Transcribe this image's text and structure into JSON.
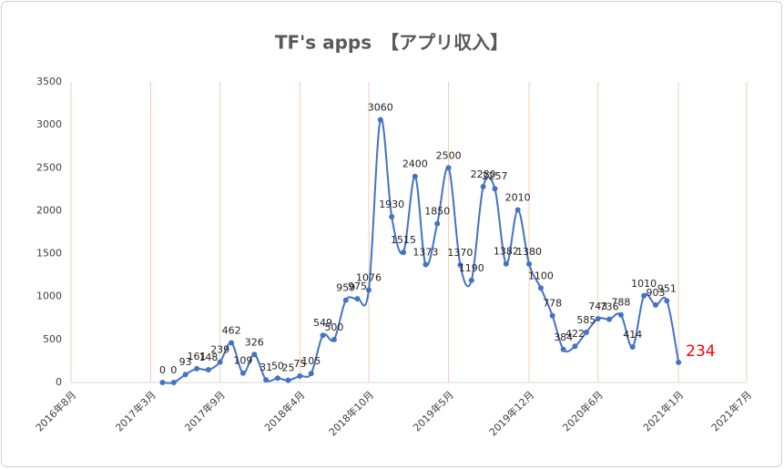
{
  "chart_data": {
    "type": "line",
    "title": "TF's apps　【アプリ収入】",
    "x": [
      "2017-04",
      "2017-05",
      "2017-06",
      "2017-07",
      "2017-08",
      "2017-09",
      "2017-10",
      "2017-11",
      "2017-12",
      "2018-01",
      "2018-02",
      "2018-03",
      "2018-04",
      "2018-05",
      "2018-06",
      "2018-07",
      "2018-08",
      "2018-09",
      "2018-10",
      "2018-11",
      "2018-12",
      "2019-01",
      "2019-02",
      "2019-03",
      "2019-04",
      "2019-05",
      "2019-06",
      "2019-07",
      "2019-08",
      "2019-09",
      "2019-10",
      "2019-11",
      "2019-12",
      "2020-01",
      "2020-02",
      "2020-03",
      "2020-04",
      "2020-05",
      "2020-06",
      "2020-07",
      "2020-08",
      "2020-09",
      "2020-10",
      "2020-11",
      "2020-12",
      "2021-01"
    ],
    "series": [
      {
        "name": "アプリ収入",
        "color": "#4472c4",
        "values": [
          0,
          0,
          93,
          161,
          148,
          239,
          462,
          109,
          326,
          31,
          50,
          25,
          75,
          105,
          549,
          500,
          959,
          975,
          1076,
          3060,
          1930,
          1515,
          2400,
          1373,
          1850,
          2500,
          1370,
          1190,
          2280,
          2257,
          1382,
          2010,
          1380,
          1100,
          778,
          384,
          422,
          585,
          743,
          736,
          788,
          414,
          1010,
          903,
          951,
          234
        ]
      }
    ],
    "highlight_last_label_color": "#ff0000",
    "xlim": [
      "2016-08",
      "2021-07"
    ],
    "xticks": [
      {
        "value": "2016-08",
        "label": "2016年8月"
      },
      {
        "value": "2017-03",
        "label": "2017年3月"
      },
      {
        "value": "2017-09",
        "label": "2017年9月"
      },
      {
        "value": "2018-04",
        "label": "2018年4月"
      },
      {
        "value": "2018-10",
        "label": "2018年10月"
      },
      {
        "value": "2019-05",
        "label": "2019年5月"
      },
      {
        "value": "2019-12",
        "label": "2019年12月"
      },
      {
        "value": "2020-06",
        "label": "2020年6月"
      },
      {
        "value": "2021-01",
        "label": "2021年1月"
      },
      {
        "value": "2021-07",
        "label": "2021年7月"
      }
    ],
    "ylim": [
      0,
      3500
    ],
    "yticks": [
      0,
      500,
      1000,
      1500,
      2000,
      2500,
      3000,
      3500
    ],
    "grid": "x",
    "grid_color": "#f4cdb0"
  }
}
